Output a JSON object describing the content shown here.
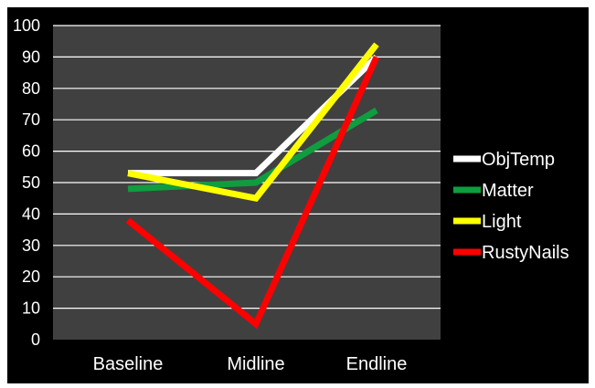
{
  "colors": {
    "page_background": "#ffffff",
    "chart_background": "#000000",
    "plot_background": "#404040",
    "gridline": "#ffffff",
    "text": "#ffffff"
  },
  "chart_data": {
    "type": "line",
    "categories": [
      "Baseline",
      "Midline",
      "Endline"
    ],
    "ylim": [
      0,
      100
    ],
    "yticks": [
      0,
      10,
      20,
      30,
      40,
      50,
      60,
      70,
      80,
      90,
      100
    ],
    "grid": true,
    "legend_position": "right",
    "series": [
      {
        "name": "ObjTemp",
        "color": "#ffffff",
        "values": [
          53,
          53,
          90
        ]
      },
      {
        "name": "Matter",
        "color": "#0f9d3f",
        "values": [
          48,
          50,
          73
        ]
      },
      {
        "name": "Light",
        "color": "#ffff00",
        "values": [
          53,
          45,
          94
        ]
      },
      {
        "name": "RustyNails",
        "color": "#ff0000",
        "values": [
          38,
          5,
          90
        ]
      }
    ]
  }
}
